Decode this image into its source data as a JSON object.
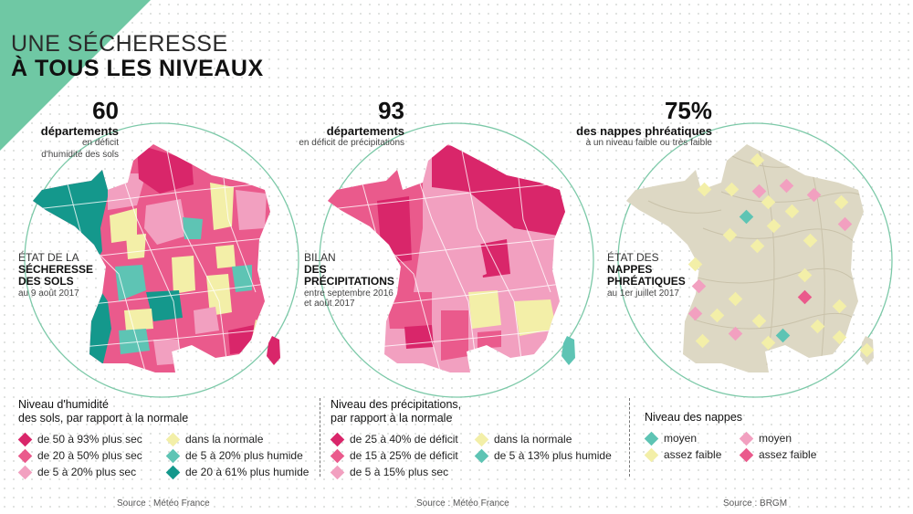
{
  "colors": {
    "dark_pink": "#d9266a",
    "mid_pink": "#ea5a8c",
    "light_pink": "#f2a0c0",
    "yellow": "#f3efa8",
    "light_teal": "#5ec4b4",
    "dark_teal": "#14988c",
    "corner_green": "#6fc8a4",
    "circle_green": "#7cc9a8",
    "beige": "#ddd8c4"
  },
  "title": {
    "line1": "UNE SÉCHERESSE",
    "line2": "À TOUS LES NIVEAUX"
  },
  "panels": [
    {
      "stat": {
        "value": "60",
        "label": "départements",
        "sub1": "en déficit",
        "sub2": "d'humidité des sols"
      },
      "map_label": {
        "l1": "ÉTAT DE LA",
        "l2": "SÉCHERESSE",
        "l3": "DES SOLS",
        "date1": "au 9 août 2017",
        "date2": ""
      },
      "legend_title": [
        "Niveau d'humidité",
        "des sols, par rapport à la normale"
      ],
      "legend_items": [
        {
          "label": "de 50 à 93% plus sec",
          "color": "#d9266a"
        },
        {
          "label": "dans la normale",
          "color": "#f3efa8"
        },
        {
          "label": "de 20 à 50% plus sec",
          "color": "#ea5a8c"
        },
        {
          "label": "de 5 à 20% plus humide",
          "color": "#5ec4b4"
        },
        {
          "label": "de 5 à 20% plus sec",
          "color": "#f2a0c0"
        },
        {
          "label": "de 20 à 61% plus humide",
          "color": "#14988c"
        }
      ],
      "source": "Source : Météo France"
    },
    {
      "stat": {
        "value": "93",
        "label": "départements",
        "sub1": "en déficit de précipitations",
        "sub2": ""
      },
      "map_label": {
        "l1": "BILAN",
        "l2": "DES",
        "l3": "PRÉCIPITATIONS",
        "date1": "entre septembre 2016",
        "date2": "et août 2017"
      },
      "legend_title": [
        "Niveau des précipitations,",
        "par rapport à la normale"
      ],
      "legend_items": [
        {
          "label": "de 25 à 40% de déficit",
          "color": "#d9266a"
        },
        {
          "label": "dans la normale",
          "color": "#f3efa8"
        },
        {
          "label": "de 15 à 25% de déficit",
          "color": "#ea5a8c"
        },
        {
          "label": "de 5 à 13% plus humide",
          "color": "#5ec4b4"
        },
        {
          "label": "de 5 à 15% plus sec",
          "color": "#f2a0c0"
        }
      ],
      "source": "Source : Météo France"
    },
    {
      "stat": {
        "value": "75%",
        "label": "des nappes phréatiques",
        "sub1": "à un niveau faible ou très faible",
        "sub2": ""
      },
      "map_label": {
        "l1": "ÉTAT DES",
        "l2": "NAPPES",
        "l3": "PHRÉATIQUES",
        "date1": "au 1er juillet 2017",
        "date2": ""
      },
      "legend_title": [
        "Niveau des nappes",
        ""
      ],
      "legend_items": [
        {
          "label": "moyen",
          "color": "#5ec4b4"
        },
        {
          "label": "moyen",
          "color": "#f2a0c0"
        },
        {
          "label": "assez faible",
          "color": "#f3efa8"
        },
        {
          "label": "assez faible",
          "color": "#ea5a8c"
        }
      ],
      "source": "Source : BRGM"
    }
  ]
}
